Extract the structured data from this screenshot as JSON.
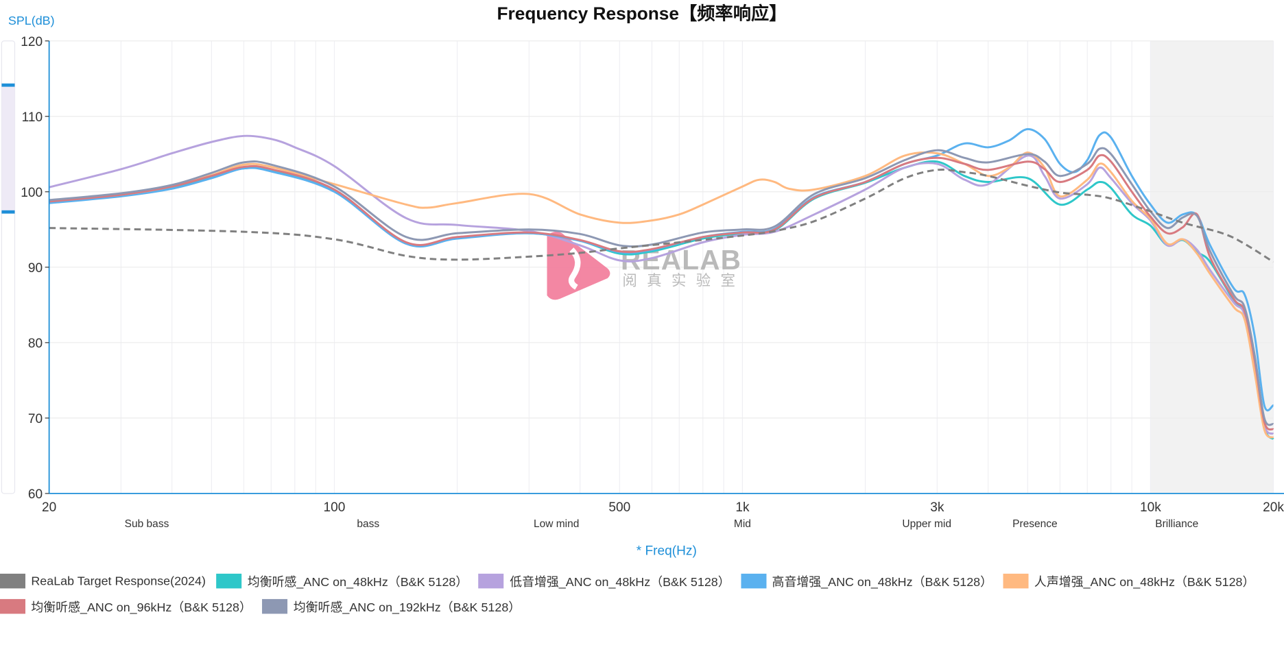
{
  "chart_data": {
    "type": "line",
    "title": "Frequency Response【频率响应】",
    "ylabel": "SPL(dB)",
    "xlabel": "* Freq(Hz)",
    "xscale": "log",
    "xlim": [
      20,
      20000
    ],
    "ylim": [
      60,
      120
    ],
    "yticks": [
      60,
      70,
      80,
      90,
      100,
      110,
      120
    ],
    "xticks": [
      {
        "v": 20,
        "label": "20"
      },
      {
        "v": 100,
        "label": "100"
      },
      {
        "v": 500,
        "label": "500"
      },
      {
        "v": 1000,
        "label": "1k"
      },
      {
        "v": 3000,
        "label": "3k"
      },
      {
        "v": 10000,
        "label": "10k"
      },
      {
        "v": 20000,
        "label": "20k"
      }
    ],
    "bands": [
      {
        "label": "Sub bass",
        "at_hz": 34.7
      },
      {
        "label": "bass",
        "at_hz": 121
      },
      {
        "label": "Low mind",
        "at_hz": 350
      },
      {
        "label": "Mid",
        "at_hz": 1000
      },
      {
        "label": "Upper mid",
        "at_hz": 2830
      },
      {
        "label": "Presence",
        "at_hz": 5210
      },
      {
        "label": "Brilliance",
        "at_hz": 11600
      }
    ],
    "shaded_range_hz": [
      10000,
      20000
    ],
    "grid": true,
    "legend_position": "bottom",
    "series": [
      {
        "name": "ReaLab Target Response(2024)",
        "color": "#808080",
        "dashed": true,
        "points": [
          [
            20,
            95.2
          ],
          [
            60,
            94.7
          ],
          [
            100,
            93.7
          ],
          [
            150,
            91.5
          ],
          [
            200,
            91
          ],
          [
            300,
            91.4
          ],
          [
            400,
            91.9
          ],
          [
            500,
            92.5
          ],
          [
            700,
            93.3
          ],
          [
            1000,
            94.2
          ],
          [
            1200,
            94.8
          ],
          [
            1500,
            96.1
          ],
          [
            2000,
            99.1
          ],
          [
            2500,
            101.8
          ],
          [
            3000,
            102.9
          ],
          [
            3500,
            102.6
          ],
          [
            4000,
            102.1
          ],
          [
            5000,
            100.8
          ],
          [
            6000,
            99.9
          ],
          [
            7000,
            99.6
          ],
          [
            8000,
            99.1
          ],
          [
            10000,
            97.4
          ],
          [
            12000,
            95.9
          ],
          [
            15000,
            94.5
          ],
          [
            17000,
            93.1
          ],
          [
            20000,
            90.7
          ]
        ]
      },
      {
        "name": "均衡听感_ANC on_48kHz（B&K 5128）",
        "color": "#2ec7c9",
        "points": [
          [
            20,
            98.6
          ],
          [
            30,
            99.5
          ],
          [
            40,
            100.5
          ],
          [
            50,
            101.9
          ],
          [
            60,
            103.1
          ],
          [
            70,
            102.8
          ],
          [
            100,
            100.1
          ],
          [
            150,
            93.2
          ],
          [
            200,
            93.9
          ],
          [
            300,
            94.5
          ],
          [
            400,
            93.5
          ],
          [
            500,
            91.8
          ],
          [
            600,
            92.1
          ],
          [
            800,
            93.8
          ],
          [
            1000,
            94.5
          ],
          [
            1200,
            94.9
          ],
          [
            1500,
            99.1
          ],
          [
            2000,
            101.2
          ],
          [
            2500,
            103.2
          ],
          [
            3000,
            104
          ],
          [
            3500,
            102.1
          ],
          [
            4000,
            101.3
          ],
          [
            5000,
            101.8
          ],
          [
            6000,
            98.3
          ],
          [
            7000,
            100.3
          ],
          [
            7500,
            101.3
          ],
          [
            8000,
            100.5
          ],
          [
            9000,
            97
          ],
          [
            10000,
            95.5
          ],
          [
            11000,
            92.9
          ],
          [
            12000,
            93.6
          ],
          [
            13000,
            92
          ],
          [
            14000,
            90.7
          ],
          [
            16000,
            85.6
          ],
          [
            17000,
            84
          ],
          [
            18000,
            77.2
          ],
          [
            19000,
            68.8
          ],
          [
            20000,
            67.2
          ]
        ]
      },
      {
        "name": "低音增强_ANC on_48kHz（B&K 5128）",
        "color": "#b6a2de",
        "points": [
          [
            20,
            100.6
          ],
          [
            30,
            103
          ],
          [
            40,
            105.1
          ],
          [
            50,
            106.6
          ],
          [
            60,
            107.4
          ],
          [
            70,
            107
          ],
          [
            80,
            105.9
          ],
          [
            100,
            103.4
          ],
          [
            150,
            96.5
          ],
          [
            200,
            95.6
          ],
          [
            300,
            94.8
          ],
          [
            400,
            92.9
          ],
          [
            500,
            90.9
          ],
          [
            600,
            91.2
          ],
          [
            800,
            93.3
          ],
          [
            1000,
            94.3
          ],
          [
            1200,
            94.7
          ],
          [
            1500,
            97
          ],
          [
            2000,
            100.3
          ],
          [
            2500,
            103.2
          ],
          [
            3000,
            103.7
          ],
          [
            3500,
            101.6
          ],
          [
            4000,
            101
          ],
          [
            5000,
            104.8
          ],
          [
            5500,
            102.1
          ],
          [
            6000,
            99.1
          ],
          [
            7000,
            101
          ],
          [
            7500,
            103.2
          ],
          [
            8000,
            101.8
          ],
          [
            9000,
            98.5
          ],
          [
            10000,
            96.2
          ],
          [
            11000,
            92.9
          ],
          [
            12000,
            93.7
          ],
          [
            13000,
            92.3
          ],
          [
            14000,
            89.6
          ],
          [
            16000,
            85.3
          ],
          [
            17000,
            83.7
          ],
          [
            18000,
            76.6
          ],
          [
            19000,
            69
          ],
          [
            20000,
            67.9
          ]
        ]
      },
      {
        "name": "高音增强_ANC on_48kHz（B&K 5128）",
        "color": "#5ab1ef",
        "points": [
          [
            20,
            98.5
          ],
          [
            30,
            99.4
          ],
          [
            40,
            100.4
          ],
          [
            50,
            101.8
          ],
          [
            60,
            103.1
          ],
          [
            70,
            102.7
          ],
          [
            100,
            100
          ],
          [
            150,
            93.1
          ],
          [
            200,
            93.8
          ],
          [
            300,
            94.5
          ],
          [
            400,
            93.5
          ],
          [
            500,
            92
          ],
          [
            600,
            92.3
          ],
          [
            800,
            94
          ],
          [
            1000,
            94.7
          ],
          [
            1200,
            95.1
          ],
          [
            1500,
            99.3
          ],
          [
            2000,
            101.3
          ],
          [
            2500,
            103.7
          ],
          [
            3000,
            104.8
          ],
          [
            3500,
            106.4
          ],
          [
            4000,
            105.9
          ],
          [
            4500,
            106.8
          ],
          [
            5000,
            108.3
          ],
          [
            5500,
            107
          ],
          [
            6000,
            103.7
          ],
          [
            6500,
            102.6
          ],
          [
            7000,
            104.2
          ],
          [
            7500,
            107.5
          ],
          [
            8000,
            107.2
          ],
          [
            9000,
            102.1
          ],
          [
            10000,
            98.3
          ],
          [
            11000,
            95.9
          ],
          [
            12000,
            97
          ],
          [
            13000,
            96.9
          ],
          [
            14000,
            92.9
          ],
          [
            16000,
            87.2
          ],
          [
            17000,
            86.4
          ],
          [
            18000,
            80.9
          ],
          [
            19000,
            71.7
          ],
          [
            20000,
            71.7
          ]
        ]
      },
      {
        "name": "人声增强_ANC on_48kHz（B&K 5128）",
        "color": "#ffb980",
        "points": [
          [
            20,
            98.8
          ],
          [
            30,
            99.6
          ],
          [
            40,
            100.7
          ],
          [
            50,
            102.2
          ],
          [
            60,
            103.6
          ],
          [
            70,
            103.3
          ],
          [
            100,
            101
          ],
          [
            150,
            98.3
          ],
          [
            170,
            97.9
          ],
          [
            200,
            98.5
          ],
          [
            300,
            99.7
          ],
          [
            400,
            97
          ],
          [
            500,
            95.9
          ],
          [
            600,
            96.2
          ],
          [
            700,
            97
          ],
          [
            800,
            98.3
          ],
          [
            1000,
            100.7
          ],
          [
            1100,
            101.6
          ],
          [
            1200,
            101.3
          ],
          [
            1300,
            100.4
          ],
          [
            1500,
            100.3
          ],
          [
            2000,
            102.1
          ],
          [
            2500,
            104.8
          ],
          [
            3000,
            105.1
          ],
          [
            3500,
            103.7
          ],
          [
            4000,
            102.1
          ],
          [
            4500,
            103.2
          ],
          [
            5000,
            105.2
          ],
          [
            5500,
            103.2
          ],
          [
            6000,
            99.4
          ],
          [
            7000,
            101.6
          ],
          [
            7500,
            103.7
          ],
          [
            8000,
            102.6
          ],
          [
            9000,
            98.8
          ],
          [
            10000,
            96.4
          ],
          [
            11000,
            93.1
          ],
          [
            12000,
            93.7
          ],
          [
            13000,
            91.8
          ],
          [
            14000,
            89.1
          ],
          [
            16000,
            84.7
          ],
          [
            17000,
            83.1
          ],
          [
            18000,
            76
          ],
          [
            19000,
            68.5
          ],
          [
            20000,
            67.4
          ]
        ]
      },
      {
        "name": "均衡听感_ANC on_96kHz（B&K 5128）",
        "color": "#d87a80",
        "points": [
          [
            20,
            98.7
          ],
          [
            30,
            99.6
          ],
          [
            40,
            100.7
          ],
          [
            50,
            102.1
          ],
          [
            60,
            103.3
          ],
          [
            70,
            103
          ],
          [
            100,
            100.3
          ],
          [
            150,
            93.3
          ],
          [
            200,
            94
          ],
          [
            300,
            94.6
          ],
          [
            400,
            93.6
          ],
          [
            500,
            92.1
          ],
          [
            600,
            92.4
          ],
          [
            800,
            94
          ],
          [
            1000,
            94.6
          ],
          [
            1200,
            95
          ],
          [
            1500,
            99.2
          ],
          [
            2000,
            101.3
          ],
          [
            2500,
            103.7
          ],
          [
            3000,
            104.5
          ],
          [
            3500,
            103.7
          ],
          [
            4000,
            102.9
          ],
          [
            5000,
            104
          ],
          [
            5500,
            103
          ],
          [
            6000,
            101.3
          ],
          [
            7000,
            102.9
          ],
          [
            7500,
            104.8
          ],
          [
            8000,
            104
          ],
          [
            9000,
            100
          ],
          [
            10000,
            96.7
          ],
          [
            11000,
            94.5
          ],
          [
            12000,
            95.3
          ],
          [
            13000,
            97
          ],
          [
            14000,
            91.3
          ],
          [
            16000,
            85.8
          ],
          [
            17000,
            84.2
          ],
          [
            18000,
            77.7
          ],
          [
            19000,
            69.5
          ],
          [
            20000,
            68.5
          ]
        ]
      },
      {
        "name": "均衡听感_ANC on_192kHz（B&K 5128）",
        "color": "#8d98b3",
        "points": [
          [
            20,
            98.9
          ],
          [
            30,
            99.8
          ],
          [
            40,
            100.9
          ],
          [
            50,
            102.5
          ],
          [
            60,
            103.9
          ],
          [
            70,
            103.6
          ],
          [
            100,
            100.7
          ],
          [
            150,
            94
          ],
          [
            200,
            94.5
          ],
          [
            300,
            95
          ],
          [
            400,
            94.4
          ],
          [
            500,
            92.9
          ],
          [
            600,
            93
          ],
          [
            800,
            94.6
          ],
          [
            1000,
            95
          ],
          [
            1200,
            95.4
          ],
          [
            1500,
            99.7
          ],
          [
            2000,
            101.8
          ],
          [
            2500,
            104.2
          ],
          [
            3000,
            105.5
          ],
          [
            3500,
            104.5
          ],
          [
            4000,
            103.9
          ],
          [
            5000,
            105
          ],
          [
            5500,
            104
          ],
          [
            6000,
            102.1
          ],
          [
            7000,
            103.7
          ],
          [
            7500,
            105.7
          ],
          [
            8000,
            105
          ],
          [
            9000,
            101
          ],
          [
            10000,
            97.4
          ],
          [
            11000,
            95.2
          ],
          [
            12000,
            96.6
          ],
          [
            13000,
            96.8
          ],
          [
            14000,
            92.1
          ],
          [
            16000,
            86.3
          ],
          [
            17000,
            84.7
          ],
          [
            18000,
            78.3
          ],
          [
            19000,
            70
          ],
          [
            20000,
            69.2
          ]
        ]
      }
    ]
  },
  "watermark": {
    "text": "REALAB",
    "subtext": "阅真实验室",
    "logo_color": "#f27a9a"
  },
  "axis_color": "#1e8fd8",
  "shade_color": "#f2f2f2"
}
